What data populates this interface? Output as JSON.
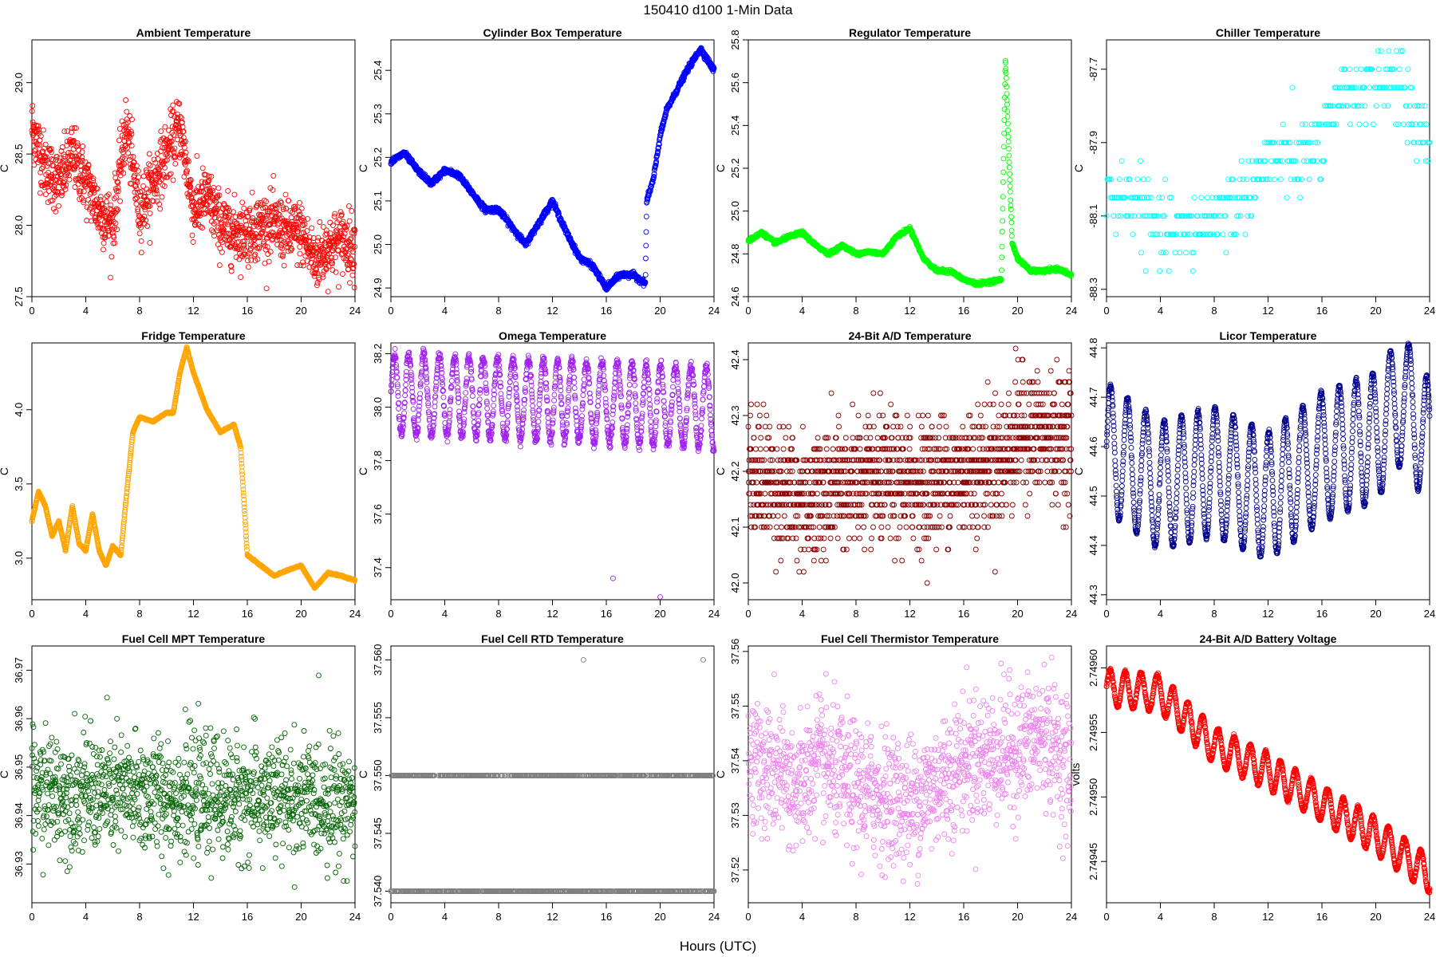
{
  "figure": {
    "title": "150410    d100    1-Min Data",
    "xlabel": "Hours (UTC)"
  },
  "chart_data": [
    {
      "type": "scatter",
      "title": "Ambient Temperature",
      "ylabel": "C",
      "color": "#ff0000",
      "xlim": [
        0,
        24
      ],
      "ylim": [
        27.5,
        29.3
      ],
      "xticks": [
        0,
        4,
        8,
        12,
        16,
        20,
        24
      ],
      "yticks": [
        27.5,
        28.0,
        28.5,
        29.0
      ],
      "ytick_labels": [
        "27.5",
        "28.0",
        "28.5",
        "29.0"
      ],
      "curve": [
        [
          0,
          28.7
        ],
        [
          1,
          28.4
        ],
        [
          2,
          28.3
        ],
        [
          3,
          28.5
        ],
        [
          4,
          28.3
        ],
        [
          5,
          28.1
        ],
        [
          6,
          28.0
        ],
        [
          7,
          28.7
        ],
        [
          8,
          28.1
        ],
        [
          9,
          28.3
        ],
        [
          10,
          28.5
        ],
        [
          11,
          28.7
        ],
        [
          12,
          28.1
        ],
        [
          13,
          28.2
        ],
        [
          14,
          28.0
        ],
        [
          15,
          27.95
        ],
        [
          16,
          27.95
        ],
        [
          17,
          28.0
        ],
        [
          18,
          28.0
        ],
        [
          19,
          27.95
        ],
        [
          20,
          27.95
        ],
        [
          21,
          27.75
        ],
        [
          22,
          27.85
        ],
        [
          23,
          27.9
        ],
        [
          24,
          27.85
        ]
      ],
      "noise": 0.22,
      "n": 1440
    },
    {
      "type": "scatter",
      "title": "Cylinder Box Temperature",
      "ylabel": "C",
      "color": "#0000ff",
      "xlim": [
        0,
        24
      ],
      "ylim": [
        24.88,
        25.47
      ],
      "xticks": [
        0,
        4,
        8,
        12,
        16,
        20,
        24
      ],
      "yticks": [
        24.9,
        25.0,
        25.1,
        25.2,
        25.3,
        25.4
      ],
      "ytick_labels": [
        "24.9",
        "25.0",
        "25.1",
        "25.2",
        "25.3",
        "25.4"
      ],
      "curve": [
        [
          0,
          25.19
        ],
        [
          1,
          25.21
        ],
        [
          2,
          25.17
        ],
        [
          3,
          25.14
        ],
        [
          4,
          25.17
        ],
        [
          5,
          25.16
        ],
        [
          6,
          25.12
        ],
        [
          7,
          25.08
        ],
        [
          8,
          25.08
        ],
        [
          9,
          25.04
        ],
        [
          10,
          25.0
        ],
        [
          11,
          25.05
        ],
        [
          12,
          25.1
        ],
        [
          13,
          25.03
        ],
        [
          14,
          24.97
        ],
        [
          15,
          24.95
        ],
        [
          16,
          24.9
        ],
        [
          17,
          24.93
        ],
        [
          18,
          24.93
        ],
        [
          18.9,
          24.91
        ],
        [
          19.0,
          25.1
        ],
        [
          19.5,
          25.15
        ],
        [
          20,
          25.25
        ],
        [
          20.5,
          25.31
        ],
        [
          21,
          25.34
        ],
        [
          22,
          25.4
        ],
        [
          23,
          25.45
        ],
        [
          24,
          25.4
        ]
      ],
      "noise": 0.006,
      "n": 1440
    },
    {
      "type": "scatter",
      "title": "Regulator Temperature",
      "ylabel": "C",
      "color": "#00ff00",
      "xlim": [
        0,
        24
      ],
      "ylim": [
        24.6,
        25.8
      ],
      "xticks": [
        0,
        4,
        8,
        12,
        16,
        20,
        24
      ],
      "yticks": [
        24.6,
        24.8,
        25.0,
        25.2,
        25.4,
        25.6,
        25.8
      ],
      "ytick_labels": [
        "24.6",
        "24.8",
        "25.0",
        "25.2",
        "25.4",
        "25.6",
        "25.8"
      ],
      "curve": [
        [
          0,
          24.86
        ],
        [
          1,
          24.9
        ],
        [
          2,
          24.85
        ],
        [
          3,
          24.88
        ],
        [
          4,
          24.9
        ],
        [
          5,
          24.84
        ],
        [
          6,
          24.8
        ],
        [
          7,
          24.84
        ],
        [
          8,
          24.8
        ],
        [
          9,
          24.81
        ],
        [
          10,
          24.8
        ],
        [
          11,
          24.88
        ],
        [
          12,
          24.92
        ],
        [
          13,
          24.78
        ],
        [
          14,
          24.72
        ],
        [
          15,
          24.72
        ],
        [
          16,
          24.68
        ],
        [
          17,
          24.66
        ],
        [
          18,
          24.67
        ],
        [
          18.8,
          24.68
        ],
        [
          19.1,
          25.72
        ],
        [
          19.6,
          24.85
        ],
        [
          20,
          24.78
        ],
        [
          21,
          24.72
        ],
        [
          22,
          24.72
        ],
        [
          23,
          24.73
        ],
        [
          24,
          24.7
        ]
      ],
      "noise": 0.008,
      "n": 1440
    },
    {
      "type": "scatter",
      "title": "Chiller Temperature",
      "ylabel": "C",
      "color": "#00ffff",
      "xlim": [
        0,
        24
      ],
      "ylim": [
        -88.32,
        -87.62
      ],
      "xticks": [
        0,
        4,
        8,
        12,
        16,
        20,
        24
      ],
      "yticks": [
        -88.3,
        -88.1,
        -87.9,
        -87.7
      ],
      "ytick_labels": [
        "-88.3",
        "-88.1",
        "-87.9",
        "-87.7"
      ],
      "curve": [
        [
          0,
          -88.05
        ],
        [
          2,
          -88.05
        ],
        [
          4,
          -88.15
        ],
        [
          6,
          -88.15
        ],
        [
          8,
          -88.1
        ],
        [
          10,
          -88.05
        ],
        [
          12,
          -87.95
        ],
        [
          14,
          -87.95
        ],
        [
          16,
          -87.9
        ],
        [
          18,
          -87.75
        ],
        [
          20,
          -87.72
        ],
        [
          22,
          -87.75
        ],
        [
          23,
          -87.85
        ],
        [
          24,
          -87.9
        ]
      ],
      "noise": 0.1,
      "n": 420,
      "quantize": 0.05
    },
    {
      "type": "scatter",
      "title": "Fridge Temperature",
      "ylabel": "C",
      "color": "#ffa500",
      "xlim": [
        0,
        24
      ],
      "ylim": [
        2.72,
        4.45
      ],
      "xticks": [
        0,
        4,
        8,
        12,
        16,
        20,
        24
      ],
      "yticks": [
        3.0,
        3.5,
        4.0
      ],
      "ytick_labels": [
        "3.0",
        "3.5",
        "4.0"
      ],
      "curve": [
        [
          0,
          3.25
        ],
        [
          0.5,
          3.45
        ],
        [
          1,
          3.35
        ],
        [
          1.5,
          3.15
        ],
        [
          2,
          3.25
        ],
        [
          2.5,
          3.05
        ],
        [
          3,
          3.35
        ],
        [
          3.5,
          3.1
        ],
        [
          4,
          3.05
        ],
        [
          4.5,
          3.3
        ],
        [
          5,
          3.05
        ],
        [
          5.5,
          2.95
        ],
        [
          6,
          3.08
        ],
        [
          6.6,
          3.02
        ],
        [
          7,
          3.4
        ],
        [
          7.5,
          3.85
        ],
        [
          8,
          3.95
        ],
        [
          9,
          3.92
        ],
        [
          10,
          3.98
        ],
        [
          10.5,
          3.98
        ],
        [
          11,
          4.25
        ],
        [
          11.5,
          4.42
        ],
        [
          12,
          4.25
        ],
        [
          13,
          4.0
        ],
        [
          14,
          3.85
        ],
        [
          15,
          3.9
        ],
        [
          15.5,
          3.75
        ],
        [
          16,
          3.02
        ],
        [
          17,
          2.95
        ],
        [
          18,
          2.88
        ],
        [
          19,
          2.92
        ],
        [
          20,
          2.95
        ],
        [
          21,
          2.8
        ],
        [
          22,
          2.9
        ],
        [
          23,
          2.88
        ],
        [
          24,
          2.85
        ]
      ],
      "noise": 0.004,
      "n": 1440
    },
    {
      "type": "scatter",
      "title": "Omega Temperature",
      "ylabel": "C",
      "color": "#a020f0",
      "xlim": [
        0,
        24
      ],
      "ylim": [
        37.28,
        38.24
      ],
      "xticks": [
        0,
        4,
        8,
        12,
        16,
        20,
        24
      ],
      "yticks": [
        37.4,
        37.6,
        37.8,
        38.0,
        38.2
      ],
      "ytick_labels": [
        "37.4",
        "37.6",
        "37.8",
        "38.0",
        "38.2"
      ],
      "curve": [
        [
          0,
          38.05
        ],
        [
          24,
          38.0
        ]
      ],
      "wave": {
        "amp": 0.15,
        "period": 1.1
      },
      "noise": 0.02,
      "n": 1440,
      "outliers": [
        [
          16.5,
          37.36
        ],
        [
          20,
          37.29
        ]
      ]
    },
    {
      "type": "scatter",
      "title": "24-Bit A/D Temperature",
      "ylabel": "C",
      "color": "#8b0000",
      "xlim": [
        0,
        24
      ],
      "ylim": [
        41.97,
        42.43
      ],
      "xticks": [
        0,
        4,
        8,
        12,
        16,
        20,
        24
      ],
      "yticks": [
        42.0,
        42.1,
        42.2,
        42.3,
        42.4
      ],
      "ytick_labels": [
        "42.0",
        "42.1",
        "42.2",
        "42.3",
        "42.4"
      ],
      "curve": [
        [
          0,
          42.2
        ],
        [
          4,
          42.15
        ],
        [
          8,
          42.18
        ],
        [
          12,
          42.18
        ],
        [
          16,
          42.2
        ],
        [
          19,
          42.22
        ],
        [
          20,
          42.27
        ],
        [
          24,
          42.26
        ]
      ],
      "noise": 0.11,
      "n": 1600,
      "quantize": 0.02
    },
    {
      "type": "scatter",
      "title": "Licor Temperature",
      "ylabel": "C",
      "color": "#00008b",
      "xlim": [
        0,
        24
      ],
      "ylim": [
        44.29,
        44.81
      ],
      "xticks": [
        0,
        4,
        8,
        12,
        16,
        20,
        24
      ],
      "yticks": [
        44.3,
        44.4,
        44.5,
        44.6,
        44.7,
        44.8
      ],
      "ytick_labels": [
        "44.3",
        "44.4",
        "44.5",
        "44.6",
        "44.7",
        "44.8"
      ],
      "curve": [
        [
          0,
          44.6
        ],
        [
          4,
          44.52
        ],
        [
          8,
          44.55
        ],
        [
          12,
          44.5
        ],
        [
          16,
          44.58
        ],
        [
          20,
          44.62
        ],
        [
          22,
          44.7
        ],
        [
          24,
          44.6
        ]
      ],
      "wave": {
        "amp": 0.13,
        "period": 1.3
      },
      "noise": 0.004,
      "n": 1440
    },
    {
      "type": "scatter",
      "title": "Fuel Cell MPT Temperature",
      "ylabel": "C",
      "color": "#006400",
      "xlim": [
        0,
        24
      ],
      "ylim": [
        36.922,
        36.975
      ],
      "xticks": [
        0,
        4,
        8,
        12,
        16,
        20,
        24
      ],
      "yticks": [
        36.93,
        36.94,
        36.95,
        36.96,
        36.97
      ],
      "ytick_labels": [
        "36.93",
        "36.94",
        "36.95",
        "36.96",
        "36.97"
      ],
      "curve": [
        [
          0,
          36.945
        ],
        [
          24,
          36.943
        ]
      ],
      "noise": 0.012,
      "n": 1300
    },
    {
      "type": "scatter",
      "title": "Fuel Cell RTD Temperature",
      "ylabel": "C",
      "color": "#808080",
      "xlim": [
        0,
        24
      ],
      "ylim": [
        37.539,
        37.5612
      ],
      "xticks": [
        0,
        4,
        8,
        12,
        16,
        20,
        24
      ],
      "yticks": [
        37.54,
        37.545,
        37.55,
        37.555,
        37.56
      ],
      "ytick_labels": [
        "37.540",
        "37.545",
        "37.550",
        "37.555",
        "37.560"
      ],
      "levels": [
        37.54,
        37.55
      ],
      "n": 1200,
      "outliers": [
        [
          14.3,
          37.56
        ],
        [
          23.2,
          37.56
        ]
      ]
    },
    {
      "type": "scatter",
      "title": "Fuel Cell Thermistor Temperature",
      "ylabel": "C",
      "color": "#ee82ee",
      "xlim": [
        0,
        24
      ],
      "ylim": [
        37.514,
        37.561
      ],
      "xticks": [
        0,
        4,
        8,
        12,
        16,
        20,
        24
      ],
      "yticks": [
        37.52,
        37.53,
        37.54,
        37.55,
        37.56
      ],
      "ytick_labels": [
        "37.52",
        "37.53",
        "37.54",
        "37.55",
        "37.56"
      ],
      "curve": [
        [
          0,
          37.54
        ],
        [
          4,
          37.535
        ],
        [
          5,
          37.54
        ],
        [
          8,
          37.535
        ],
        [
          12,
          37.532
        ],
        [
          16,
          37.54
        ],
        [
          20,
          37.542
        ],
        [
          22,
          37.545
        ],
        [
          24,
          37.538
        ]
      ],
      "noise": 0.012,
      "n": 1300
    },
    {
      "type": "scatter",
      "title": "24-Bit A/D Battery Voltage",
      "ylabel": "volts",
      "color": "#ff0000",
      "xlim": [
        0,
        24
      ],
      "ylim": [
        2.749418,
        2.749617
      ],
      "xticks": [
        0,
        4,
        8,
        12,
        16,
        20,
        24
      ],
      "yticks": [
        2.74945,
        2.7495,
        2.74955,
        2.7496
      ],
      "ytick_labels": [
        "2.74945",
        "2.74950",
        "2.74955",
        "2.74960"
      ],
      "curve": [
        [
          0,
          2.749585
        ],
        [
          4,
          2.74958
        ],
        [
          8,
          2.74954
        ],
        [
          12,
          2.74952
        ],
        [
          16,
          2.749495
        ],
        [
          20,
          2.74947
        ],
        [
          24,
          2.74944
        ]
      ],
      "wave": {
        "amp": 1.4e-05,
        "period": 1.15
      },
      "noise": 1.2e-06,
      "n": 1440
    }
  ]
}
